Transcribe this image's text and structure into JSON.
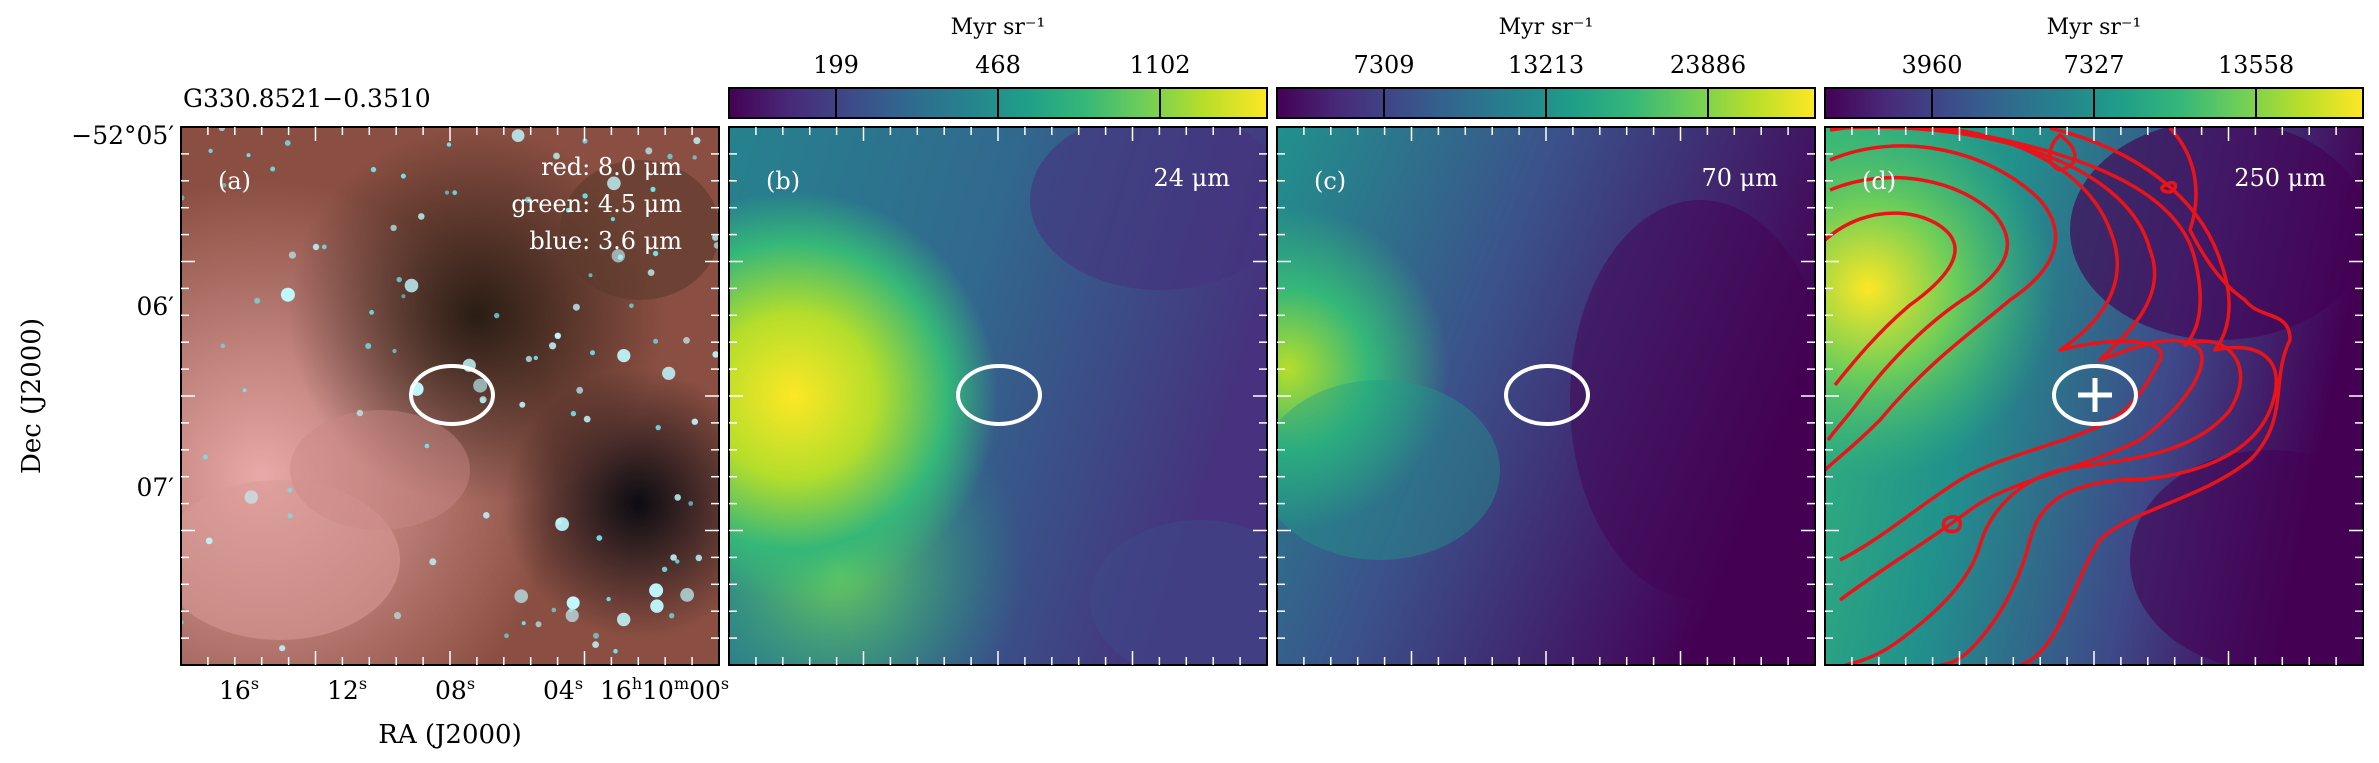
{
  "source_name": "G330.8521−0.3510",
  "axes": {
    "ylabel": "Dec (J2000)",
    "xlabel": "RA (J2000)",
    "dec_ticks": [
      "−52°05′",
      "06′",
      "07′"
    ],
    "ra_ticks": [
      "16",
      "12",
      "08",
      "04",
      "16",
      "10",
      "00"
    ]
  },
  "panels": [
    {
      "id": "a",
      "tag": "(a)",
      "legend": [
        "red: 8.0 μm",
        "green: 4.5 μm",
        "blue: 3.6 μm"
      ],
      "legend_colors": [
        "#ff6060",
        "#60ff60",
        "#60b0ff"
      ]
    },
    {
      "id": "b",
      "tag": "(b)",
      "band": "24 μm",
      "colorbar_unit": "Myr sr⁻¹",
      "colorbar_ticks": [
        "199",
        "468",
        "1102"
      ]
    },
    {
      "id": "c",
      "tag": "(c)",
      "band": "70 μm",
      "colorbar_unit": "Myr sr⁻¹",
      "colorbar_ticks": [
        "7309",
        "13213",
        "23886"
      ]
    },
    {
      "id": "d",
      "tag": "(d)",
      "band": "250 μm",
      "colorbar_unit": "Myr sr⁻¹",
      "colorbar_ticks": [
        "3960",
        "7327",
        "13558"
      ]
    }
  ],
  "colors": {
    "viridis": [
      "#440154",
      "#482878",
      "#3e4989",
      "#31688e",
      "#26828e",
      "#1f9e89",
      "#35b779",
      "#6ece58",
      "#b5de2b",
      "#fde725"
    ],
    "contour": "#e8141a",
    "ellipse": "#ffffff",
    "frame": "#000000"
  }
}
